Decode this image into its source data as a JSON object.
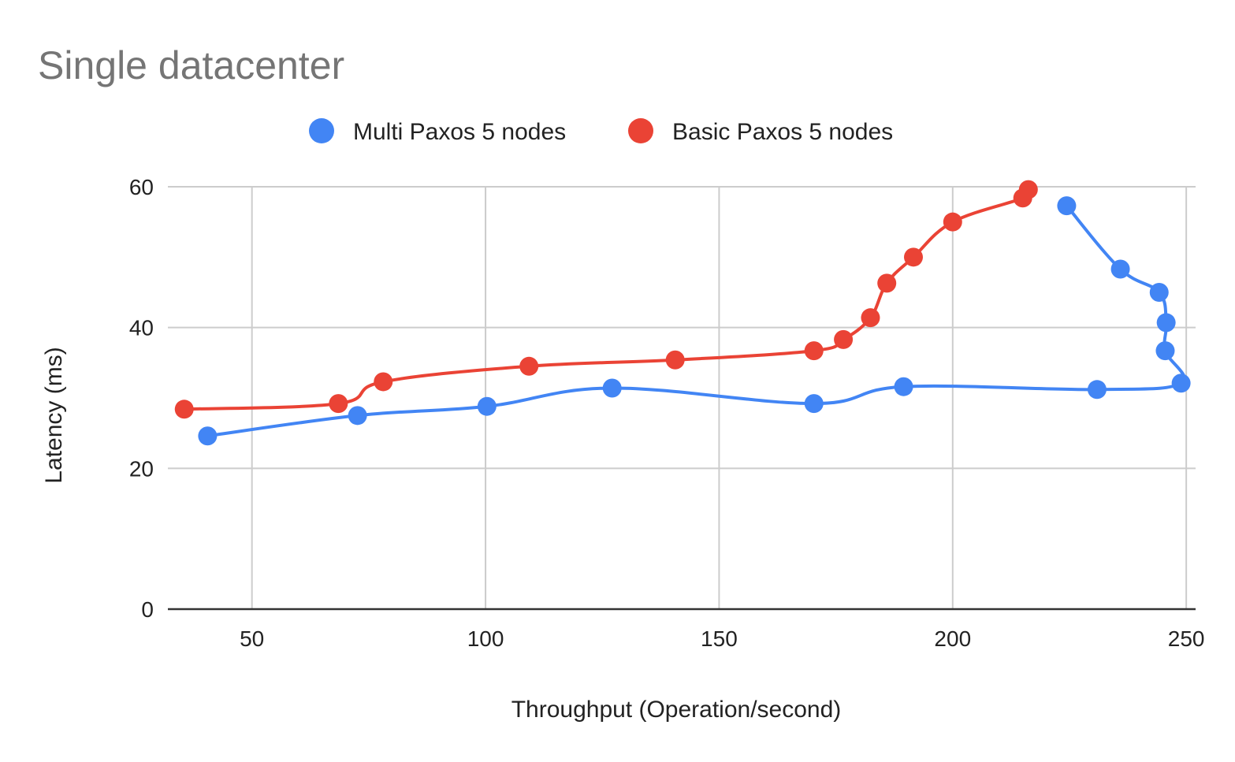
{
  "chart_data": {
    "type": "scatter",
    "title": "Single datacenter",
    "xlabel": "Throughput (Operation/second)",
    "ylabel": "Latency (ms)",
    "xlim": [
      32,
      252
    ],
    "ylim": [
      0,
      60
    ],
    "x_ticks": [
      50,
      100,
      150,
      200,
      250
    ],
    "y_ticks": [
      0,
      20,
      40,
      60
    ],
    "grid": true,
    "legend_position": "top",
    "series": [
      {
        "name": "Multi Paxos 5 nodes",
        "color": "#4285f4",
        "points": [
          [
            40.5,
            24.6
          ],
          [
            72.6,
            27.5
          ],
          [
            100.3,
            28.8
          ],
          [
            127.1,
            31.4
          ],
          [
            170.3,
            29.2
          ],
          [
            189.5,
            31.6
          ],
          [
            230.9,
            31.2
          ],
          [
            248.9,
            32.1
          ],
          [
            245.5,
            36.7
          ],
          [
            245.7,
            40.7
          ],
          [
            244.2,
            45.0
          ],
          [
            235.9,
            48.3
          ],
          [
            224.4,
            57.3
          ]
        ]
      },
      {
        "name": "Basic Paxos 5 nodes",
        "color": "#ea4335",
        "points": [
          [
            35.5,
            28.4
          ],
          [
            68.5,
            29.2
          ],
          [
            78.1,
            32.3
          ],
          [
            109.3,
            34.5
          ],
          [
            140.6,
            35.4
          ],
          [
            170.3,
            36.7
          ],
          [
            176.6,
            38.3
          ],
          [
            182.4,
            41.4
          ],
          [
            185.9,
            46.3
          ],
          [
            191.6,
            50.0
          ],
          [
            200.0,
            55.0
          ],
          [
            215.0,
            58.4
          ],
          [
            216.2,
            59.6
          ]
        ]
      }
    ]
  }
}
